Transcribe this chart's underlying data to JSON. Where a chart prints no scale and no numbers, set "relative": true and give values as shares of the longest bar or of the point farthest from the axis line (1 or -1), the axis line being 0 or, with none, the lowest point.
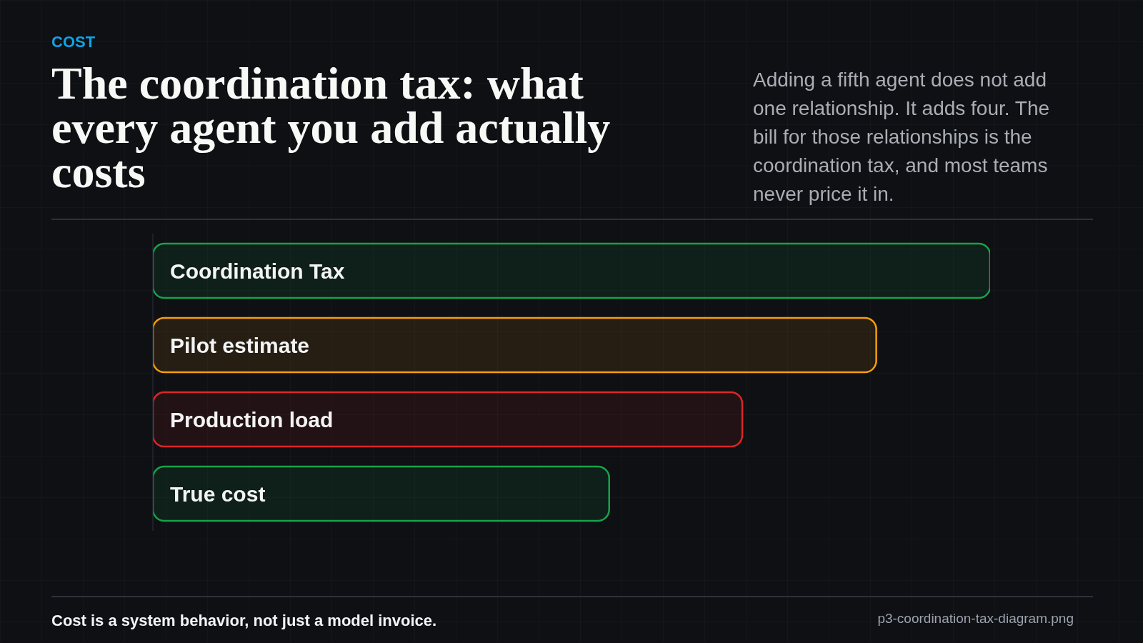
{
  "chart_data": {
    "type": "bar",
    "orientation": "horizontal",
    "relative": true,
    "title": "The coordination tax: what every agent you add actually costs",
    "subtitle": "Adding a fifth agent does not add one relationship. It adds four. The bill for those relationships is the coordination tax, and most teams never price it in.",
    "annotations": [
      "COST",
      "Cost is a system behavior, not just a model invoice.",
      "p3-coordination-tax-diagram.png"
    ],
    "categories": [
      "Coordination Tax",
      "Pilot estimate",
      "Production load",
      "True cost"
    ],
    "values": [
      1,
      0.864,
      0.704,
      0.545
    ],
    "colors": [
      "#16a34a",
      "#f59e0b",
      "#dc2626",
      "#16a34a"
    ]
  }
}
